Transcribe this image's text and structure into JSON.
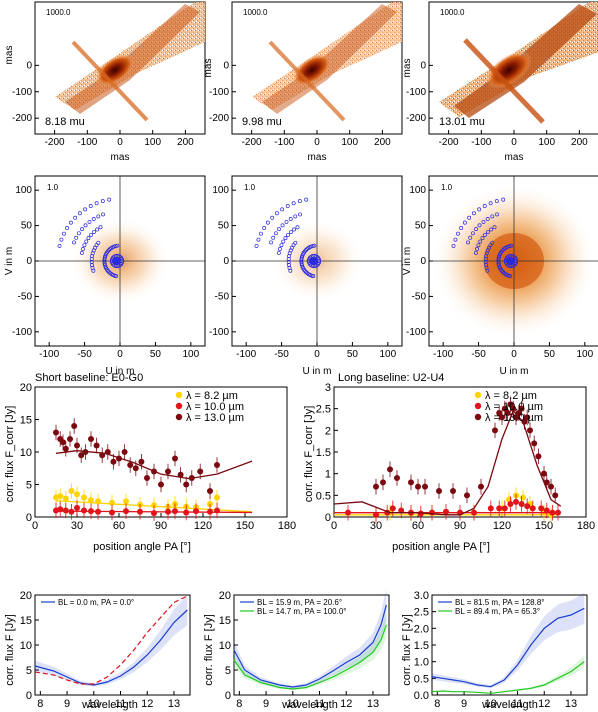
{
  "row1": {
    "ylabel": "mas",
    "xlabel": "mas",
    "scale_label": "1000.0",
    "panels": [
      {
        "label": "8.18 mu",
        "intensity": 0.7
      },
      {
        "label": "9.98 mu",
        "intensity": 0.6
      },
      {
        "label": "13.01 mu",
        "intensity": 1.0
      }
    ]
  },
  "row2": {
    "ylabel": "V in m",
    "xlabel": "U in m",
    "scale_label": "1.0",
    "panels": [
      {
        "intensity": 0.35
      },
      {
        "intensity": 0.2
      },
      {
        "intensity": 1.0
      }
    ]
  },
  "row3": {
    "xlabel": "position angle PA [°]",
    "ylabel": "corr. flux F_corr [Jy]",
    "left": {
      "title": "Short baseline: E0-G0"
    },
    "right": {
      "title": "Long  baseline: U2-U4"
    },
    "legend": [
      {
        "label": "λ =   8.2 µm",
        "color": "#ffd400"
      },
      {
        "label": "λ = 10.0 µm",
        "color": "#e0141a"
      },
      {
        "label": "λ = 13.0 µm",
        "color": "#7a0a10"
      }
    ]
  },
  "row4": {
    "xlabel": "wavelength",
    "ylabel": "corr. flux F [Jy]",
    "legends": [
      [
        "BL =   0.0 m, PA =   0.0°"
      ],
      [
        "BL = 15.9 m, PA =  20.6°",
        "BL = 14.7 m, PA = 100.0°"
      ],
      [
        "BL = 81.5 m, PA = 128.8°",
        "BL = 89.4 m, PA =  65.3°"
      ]
    ]
  },
  "chart_data": [
    {
      "type": "scatter",
      "title": "Short baseline: E0-G0",
      "xlabel": "position angle PA [°]",
      "ylabel": "corr. flux F_corr [Jy]",
      "xlim": [
        0,
        180
      ],
      "ylim": [
        0,
        20
      ],
      "series": [
        {
          "name": "λ =   8.2 µm",
          "color": "#ffd400",
          "x": [
            15,
            18,
            22,
            26,
            30,
            35,
            40,
            45,
            55,
            65,
            75,
            85,
            95,
            100,
            108,
            115,
            125,
            130
          ],
          "y": [
            3.0,
            3.2,
            2.8,
            4.0,
            3.5,
            3.0,
            2.6,
            2.4,
            2.2,
            2.4,
            1.9,
            1.8,
            1.6,
            2.0,
            1.6,
            1.5,
            2.0,
            3.0
          ],
          "fit_x": [
            15,
            155
          ],
          "fit_y": [
            2.5,
            0.8
          ]
        },
        {
          "name": "λ = 10.0 µm",
          "color": "#e0141a",
          "x": [
            15,
            18,
            22,
            26,
            30,
            35,
            40,
            45,
            55,
            65,
            75,
            85,
            95,
            100,
            108,
            115,
            125,
            130
          ],
          "y": [
            1.0,
            1.2,
            1.0,
            0.8,
            1.4,
            1.0,
            0.9,
            0.8,
            0.7,
            0.9,
            0.8,
            0.6,
            0.8,
            0.9,
            0.7,
            0.9,
            0.8,
            1.0
          ],
          "fit_x": [
            15,
            155
          ],
          "fit_y": [
            0.9,
            0.7
          ]
        },
        {
          "name": "λ = 13.0 µm",
          "color": "#7a0a10",
          "x": [
            15,
            18,
            20,
            22,
            25,
            28,
            30,
            33,
            36,
            40,
            44,
            48,
            52,
            56,
            60,
            64,
            68,
            72,
            76,
            80,
            85,
            90,
            95,
            100,
            104,
            108,
            112,
            118,
            125,
            130
          ],
          "y": [
            13,
            12,
            11.5,
            10.5,
            12,
            14,
            11,
            9.5,
            10,
            12,
            11,
            9.5,
            10,
            8.5,
            9,
            10,
            8,
            7.5,
            8.5,
            6,
            7,
            5,
            7,
            9,
            6.5,
            5,
            6,
            7,
            4,
            8
          ],
          "fit_x": [
            15,
            30,
            50,
            70,
            90,
            110,
            130,
            155
          ],
          "fit_y": [
            9.8,
            10.2,
            9.8,
            8.4,
            6.6,
            5.9,
            6.6,
            8.6
          ]
        }
      ]
    },
    {
      "type": "scatter",
      "title": "Long  baseline: U2-U4",
      "xlabel": "position angle PA [°]",
      "ylabel": "corr. flux F_corr [Jy]",
      "xlim": [
        0,
        180
      ],
      "ylim": [
        0,
        3.0
      ],
      "series": [
        {
          "name": "λ =   8.2 µm",
          "color": "#ffd400",
          "x": [
            30,
            40,
            55,
            70,
            100,
            120,
            125,
            130,
            135,
            140,
            150,
            155
          ],
          "y": [
            0.05,
            0.1,
            0.08,
            0.1,
            0.1,
            0.2,
            0.4,
            0.5,
            0.45,
            0.3,
            0.1,
            0.05
          ],
          "fit_x": [
            0,
            160
          ],
          "fit_y": [
            0.05,
            0.05
          ]
        },
        {
          "name": "λ = 10.0 µm",
          "color": "#e0141a",
          "x": [
            10,
            30,
            38,
            42,
            48,
            55,
            62,
            70,
            80,
            90,
            100,
            112,
            118,
            122,
            126,
            130,
            134,
            138,
            142,
            148,
            152,
            156,
            160
          ],
          "y": [
            0.1,
            0.05,
            0.1,
            0.2,
            0.15,
            0.1,
            0.08,
            0.1,
            0.12,
            0.1,
            0.1,
            0.2,
            0.2,
            0.2,
            0.3,
            0.35,
            0.3,
            0.25,
            0.2,
            0.2,
            0.15,
            0.1,
            0.1
          ],
          "fit_x": [
            0,
            160
          ],
          "fit_y": [
            0.1,
            0.1
          ]
        },
        {
          "name": "λ = 13.0 µm",
          "color": "#7a0a10",
          "x": [
            30,
            35,
            40,
            45,
            55,
            60,
            65,
            75,
            85,
            95,
            105,
            115,
            118,
            120,
            122,
            124,
            126,
            128,
            130,
            132,
            134,
            136,
            138,
            140,
            143,
            146,
            150,
            152,
            155,
            158
          ],
          "y": [
            0.7,
            0.8,
            1.1,
            0.9,
            0.8,
            0.7,
            0.7,
            0.6,
            0.6,
            0.5,
            0.7,
            2.0,
            2.4,
            2.3,
            2.5,
            2.4,
            2.6,
            2.5,
            2.3,
            2.4,
            2.5,
            2.2,
            2.3,
            2.0,
            1.7,
            1.4,
            1.0,
            0.8,
            0.7,
            0.5
          ],
          "fit_x": [
            0,
            20,
            40,
            60,
            80,
            90,
            100,
            110,
            120,
            128,
            135,
            145,
            155,
            162
          ],
          "fit_y": [
            0.3,
            0.35,
            0.1,
            0.1,
            0.05,
            0.05,
            0.2,
            0.7,
            1.8,
            2.45,
            2.2,
            1.2,
            0.4,
            0.25
          ]
        }
      ]
    },
    {
      "type": "line",
      "xlabel": "wavelength",
      "ylabel": "corr. flux F [Jy]",
      "xlim": [
        7.8,
        13.6
      ],
      "ylim": [
        0,
        20
      ],
      "series": [
        {
          "name": "BL =   0.0 m, PA =   0.0°",
          "color": "#1a3fd0",
          "x": [
            7.8,
            8.5,
            9.0,
            9.5,
            10.0,
            10.5,
            11.0,
            11.5,
            12.0,
            12.5,
            13.0,
            13.5
          ],
          "y": [
            5.8,
            4.8,
            3.6,
            2.4,
            2.0,
            2.6,
            3.8,
            5.6,
            8.0,
            11.0,
            14.5,
            17.0
          ]
        },
        {
          "color": "#e0141a",
          "dashed": true,
          "x": [
            7.8,
            8.5,
            9.0,
            9.5,
            10.0,
            10.5,
            11.0,
            11.5,
            12.0,
            12.5,
            13.0,
            13.5
          ],
          "y": [
            4.6,
            4.0,
            3.0,
            2.2,
            2.2,
            3.6,
            6.0,
            9.0,
            12.5,
            15.5,
            18.5,
            19.8
          ]
        }
      ]
    },
    {
      "type": "line",
      "xlabel": "wavelength",
      "ylabel": "corr. flux F [Jy]",
      "xlim": [
        7.8,
        13.6
      ],
      "ylim": [
        0,
        20
      ],
      "series": [
        {
          "name": "BL = 15.9 m, PA =  20.6°",
          "color": "#1a3fd0",
          "x": [
            7.8,
            8.2,
            8.8,
            9.5,
            10.0,
            10.5,
            11.0,
            11.5,
            12.0,
            12.5,
            13.0,
            13.3,
            13.5
          ],
          "y": [
            9.0,
            5.0,
            3.0,
            2.0,
            1.6,
            2.0,
            3.2,
            4.8,
            6.5,
            8.0,
            10.5,
            14.0,
            18.0
          ]
        },
        {
          "name": "BL = 14.7 m, PA = 100.0°",
          "color": "#22c822",
          "x": [
            7.8,
            8.2,
            8.8,
            9.5,
            10.0,
            10.5,
            11.0,
            11.5,
            12.0,
            12.5,
            13.0,
            13.3,
            13.5
          ],
          "y": [
            7.0,
            4.0,
            2.5,
            1.5,
            1.2,
            1.5,
            2.5,
            3.6,
            5.0,
            6.5,
            8.5,
            11.0,
            14.0
          ]
        }
      ]
    },
    {
      "type": "line",
      "xlabel": "wavelength",
      "ylabel": "corr. flux F [Jy]",
      "xlim": [
        7.8,
        13.6
      ],
      "ylim": [
        0,
        3.0
      ],
      "series": [
        {
          "name": "BL = 81.5 m, PA = 128.8°",
          "color": "#1a3fd0",
          "x": [
            7.8,
            8.2,
            8.6,
            9.0,
            9.5,
            10.0,
            10.5,
            11.0,
            11.5,
            12.0,
            12.5,
            13.0,
            13.5
          ],
          "y": [
            0.55,
            0.5,
            0.45,
            0.4,
            0.3,
            0.25,
            0.45,
            0.9,
            1.5,
            2.0,
            2.3,
            2.4,
            2.6
          ]
        },
        {
          "name": "BL = 89.4 m, PA =  65.3°",
          "color": "#22c822",
          "x": [
            7.8,
            8.2,
            8.6,
            9.0,
            9.5,
            10.0,
            10.5,
            11.0,
            11.5,
            12.0,
            12.5,
            13.0,
            13.5
          ],
          "y": [
            0.1,
            0.12,
            0.1,
            0.1,
            0.08,
            0.05,
            0.1,
            0.15,
            0.2,
            0.3,
            0.5,
            0.7,
            1.0
          ]
        }
      ]
    }
  ]
}
